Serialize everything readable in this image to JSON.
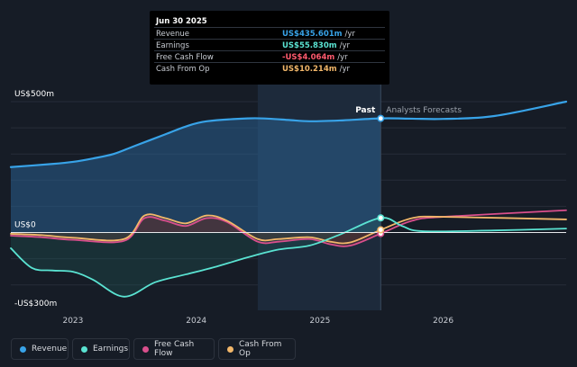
{
  "chart_data": {
    "type": "area",
    "x_axis": {
      "min": "2022-07-01",
      "max": "2026-12-31",
      "tick_labels": [
        "2023",
        "2024",
        "2025",
        "2026"
      ]
    },
    "y_axis": {
      "min": -300,
      "max": 500,
      "tick_labels": [
        "US$500m",
        "US$0",
        "-US$300m"
      ]
    },
    "divider_date": "2025-06-30",
    "past_label": "Past",
    "forecast_label": "Analysts Forecasts",
    "series": [
      {
        "name": "Revenue",
        "color": "#38a3e8",
        "points": [
          [
            "2022-07-01",
            250
          ],
          [
            "2022-11-01",
            262
          ],
          [
            "2023-01-01",
            270
          ],
          [
            "2023-03-01",
            283
          ],
          [
            "2023-05-01",
            300
          ],
          [
            "2023-07-01",
            330
          ],
          [
            "2023-10-01",
            375
          ],
          [
            "2023-12-01",
            405
          ],
          [
            "2024-02-01",
            425
          ],
          [
            "2024-06-01",
            436
          ],
          [
            "2024-08-01",
            435
          ],
          [
            "2024-10-01",
            430
          ],
          [
            "2024-12-01",
            425
          ],
          [
            "2025-03-01",
            428
          ],
          [
            "2025-06-30",
            436
          ],
          [
            "2025-10-01",
            435
          ],
          [
            "2026-01-01",
            434
          ],
          [
            "2026-06-01",
            445
          ],
          [
            "2026-12-31",
            500
          ]
        ]
      },
      {
        "name": "Earnings",
        "color": "#5ae3d2",
        "points": [
          [
            "2022-07-01",
            -60
          ],
          [
            "2022-09-01",
            -135
          ],
          [
            "2022-11-01",
            -145
          ],
          [
            "2023-01-01",
            -150
          ],
          [
            "2023-03-01",
            -180
          ],
          [
            "2023-06-01",
            -245
          ],
          [
            "2023-09-01",
            -190
          ],
          [
            "2023-12-01",
            -160
          ],
          [
            "2024-03-01",
            -130
          ],
          [
            "2024-06-01",
            -95
          ],
          [
            "2024-09-01",
            -65
          ],
          [
            "2024-12-01",
            -50
          ],
          [
            "2025-03-01",
            -8
          ],
          [
            "2025-06-30",
            55.83
          ],
          [
            "2025-09-01",
            25
          ],
          [
            "2025-11-01",
            5
          ],
          [
            "2026-06-01",
            8
          ],
          [
            "2026-12-31",
            15
          ]
        ]
      },
      {
        "name": "Free Cash Flow",
        "color": "#d94f8c",
        "points": [
          [
            "2022-07-01",
            -12
          ],
          [
            "2022-10-01",
            -18
          ],
          [
            "2023-01-01",
            -28
          ],
          [
            "2023-06-01",
            -32
          ],
          [
            "2023-08-01",
            55
          ],
          [
            "2023-10-01",
            45
          ],
          [
            "2023-12-01",
            25
          ],
          [
            "2024-02-01",
            55
          ],
          [
            "2024-04-01",
            40
          ],
          [
            "2024-07-01",
            -35
          ],
          [
            "2024-09-01",
            -35
          ],
          [
            "2024-12-01",
            -25
          ],
          [
            "2025-02-01",
            -45
          ],
          [
            "2025-04-01",
            -50
          ],
          [
            "2025-06-30",
            -4.064
          ],
          [
            "2025-10-01",
            45
          ],
          [
            "2026-01-01",
            60
          ],
          [
            "2026-12-31",
            85
          ]
        ]
      },
      {
        "name": "Cash From Op",
        "color": "#f2b76a",
        "points": [
          [
            "2022-07-01",
            -5
          ],
          [
            "2022-10-01",
            -10
          ],
          [
            "2023-01-01",
            -20
          ],
          [
            "2023-06-01",
            -25
          ],
          [
            "2023-08-01",
            65
          ],
          [
            "2023-10-01",
            55
          ],
          [
            "2023-12-01",
            35
          ],
          [
            "2024-02-01",
            65
          ],
          [
            "2024-04-01",
            45
          ],
          [
            "2024-07-01",
            -25
          ],
          [
            "2024-09-01",
            -25
          ],
          [
            "2024-12-01",
            -18
          ],
          [
            "2025-02-01",
            -35
          ],
          [
            "2025-04-01",
            -38
          ],
          [
            "2025-06-30",
            10.214
          ],
          [
            "2025-10-01",
            55
          ],
          [
            "2026-01-01",
            60
          ],
          [
            "2026-12-31",
            50
          ]
        ]
      }
    ]
  },
  "tooltip": {
    "date": "Jun 30 2025",
    "rows": [
      {
        "label": "Revenue",
        "value": "US$435.601m",
        "unit": "/yr",
        "color": "#38a3e8"
      },
      {
        "label": "Earnings",
        "value": "US$55.830m",
        "unit": "/yr",
        "color": "#5ae3d2"
      },
      {
        "label": "Free Cash Flow",
        "value": "-US$4.064m",
        "unit": "/yr",
        "color": "#ff5a6e"
      },
      {
        "label": "Cash From Op",
        "value": "US$10.214m",
        "unit": "/yr",
        "color": "#f2b76a"
      }
    ]
  },
  "legend": [
    {
      "label": "Revenue",
      "color": "#38a3e8"
    },
    {
      "label": "Earnings",
      "color": "#5ae3d2"
    },
    {
      "label": "Free Cash Flow",
      "color": "#d94f8c"
    },
    {
      "label": "Cash From Op",
      "color": "#f2b76a"
    }
  ]
}
